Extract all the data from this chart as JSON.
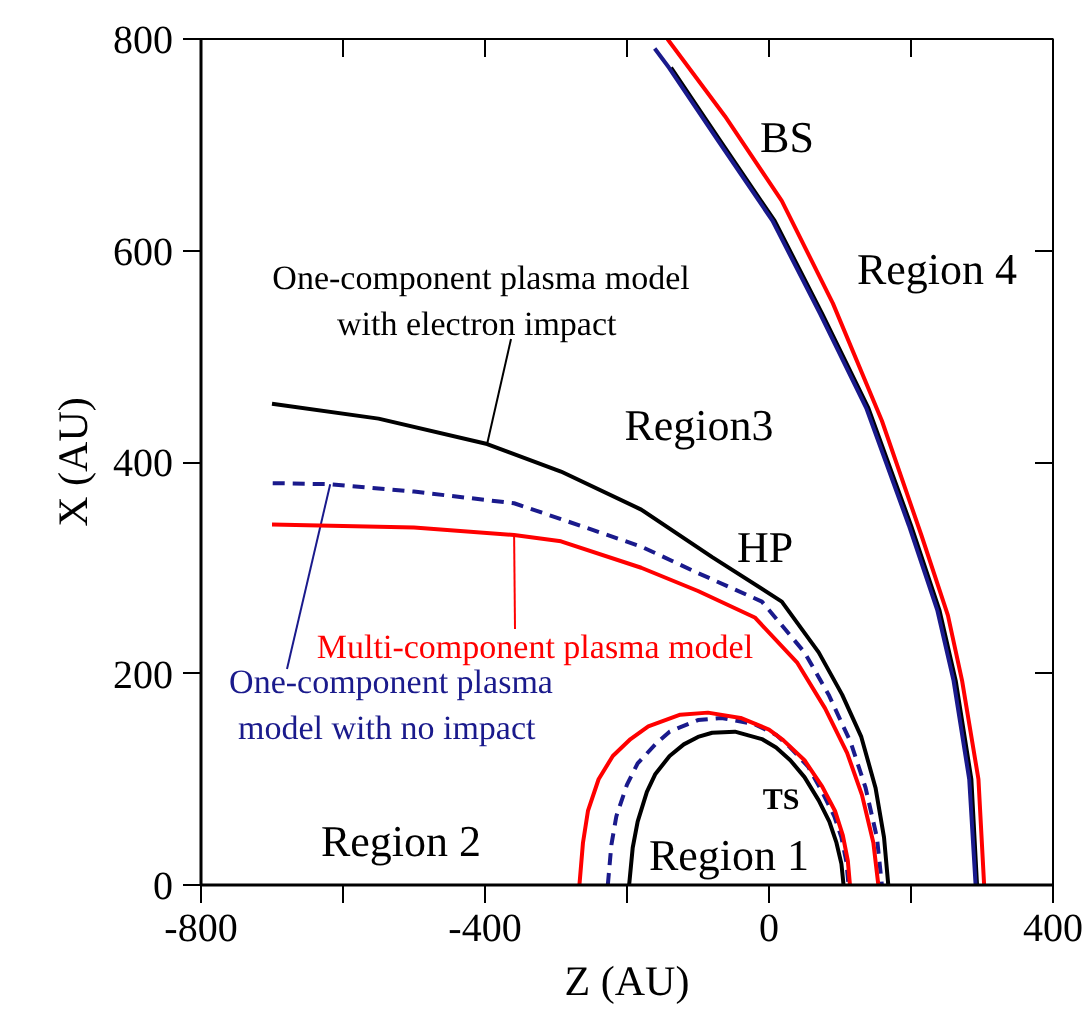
{
  "chart_data": {
    "type": "line",
    "xlabel": "Z (AU)",
    "ylabel": "X (AU)",
    "xlim": [
      -800,
      400
    ],
    "ylim": [
      0,
      800
    ],
    "xticks": [
      -800,
      {
        "value": -600,
        "label": null
      },
      -400,
      {
        "value": -200,
        "label": null
      },
      0,
      {
        "value": 200,
        "label": null
      },
      400
    ],
    "yticks": [
      0,
      200,
      400,
      600,
      800
    ],
    "grid": false,
    "marker": "none",
    "line_style": "solid",
    "series": [
      {
        "color": "#000000",
        "x": [
          -197,
          -192,
          -185,
          -172,
          -160,
          -140,
          -120,
          -100,
          -80,
          -48,
          -10,
          10,
          30,
          50,
          70,
          85,
          95,
          102,
          105
        ],
        "values": [
          0,
          35,
          60,
          88,
          105,
          122,
          133,
          140,
          144,
          145,
          138,
          130,
          118,
          102,
          80,
          60,
          40,
          20,
          0
        ]
      },
      {
        "color": "#1a1a8c",
        "line_style": "dashed",
        "x": [
          -227,
          -222,
          -215,
          -200,
          -185,
          -160,
          -140,
          -100,
          -67,
          -20,
          10,
          30,
          55,
          75,
          92,
          102,
          109,
          112
        ],
        "values": [
          0,
          38,
          65,
          95,
          115,
          133,
          145,
          156,
          158,
          152,
          142,
          130,
          112,
          88,
          65,
          45,
          22,
          0
        ]
      },
      {
        "color": "#ff0000",
        "x": [
          -267,
          -262,
          -255,
          -240,
          -220,
          -195,
          -170,
          -125,
          -86,
          -40,
          0,
          20,
          50,
          75,
          93,
          104,
          111,
          114
        ],
        "values": [
          0,
          40,
          70,
          100,
          122,
          138,
          150,
          161,
          163,
          158,
          147,
          137,
          118,
          93,
          70,
          47,
          23,
          0
        ]
      },
      {
        "name": "One-component plasma model\n with electron impact",
        "color": "#000000",
        "x": [
          -700,
          -550,
          -397,
          -293,
          -180,
          -80,
          18,
          70,
          103,
          130,
          150,
          162,
          168
        ],
        "values": [
          455,
          441,
          417,
          391,
          355,
          310,
          268,
          220,
          180,
          140,
          92,
          45,
          0
        ]
      },
      {
        "name": "One-component plasma\nmodel  with no impact",
        "color": "#1a1a8c",
        "line_style": "dashed",
        "x": [
          -699,
          -618,
          -500,
          -359,
          -293,
          -180,
          -100,
          -10,
          50,
          84,
          115,
          136,
          152,
          159
        ],
        "values": [
          380,
          379,
          372,
          361,
          346,
          320,
          295,
          268,
          220,
          180,
          135,
          92,
          45,
          0
        ]
      },
      {
        "name": "Multi-component plasma model",
        "color": "#ff0000",
        "x": [
          -700,
          -500,
          -359,
          -293,
          -180,
          -100,
          -20,
          40,
          79,
          110,
          131,
          147,
          154
        ],
        "values": [
          341,
          338,
          331,
          325,
          300,
          278,
          253,
          210,
          167,
          125,
          85,
          40,
          0
        ]
      },
      {
        "color": "#000000",
        "x": [
          -138,
          -70,
          8,
          75,
          140,
          200,
          240,
          263,
          285,
          293
        ],
        "values": [
          773,
          705,
          628,
          540,
          451,
          340,
          260,
          193,
          100,
          0
        ]
      },
      {
        "color": "#1a1a8c",
        "x": [
          -161,
          -141,
          -73,
          5,
          72,
          137,
          197,
          237,
          260,
          282,
          291
        ],
        "values": [
          791,
          773,
          705,
          628,
          540,
          451,
          340,
          260,
          193,
          100,
          0
        ]
      },
      {
        "color": "#ff0000",
        "x": [
          -143,
          -62,
          18,
          90,
          159,
          215,
          252,
          272,
          295,
          303
        ],
        "values": [
          800,
          727,
          647,
          550,
          439,
          330,
          255,
          193,
          100,
          0
        ]
      }
    ],
    "annotations": [
      "BS",
      "Region 4",
      "Region3",
      "HP",
      "TS",
      "Region 1",
      "Region 2"
    ]
  }
}
